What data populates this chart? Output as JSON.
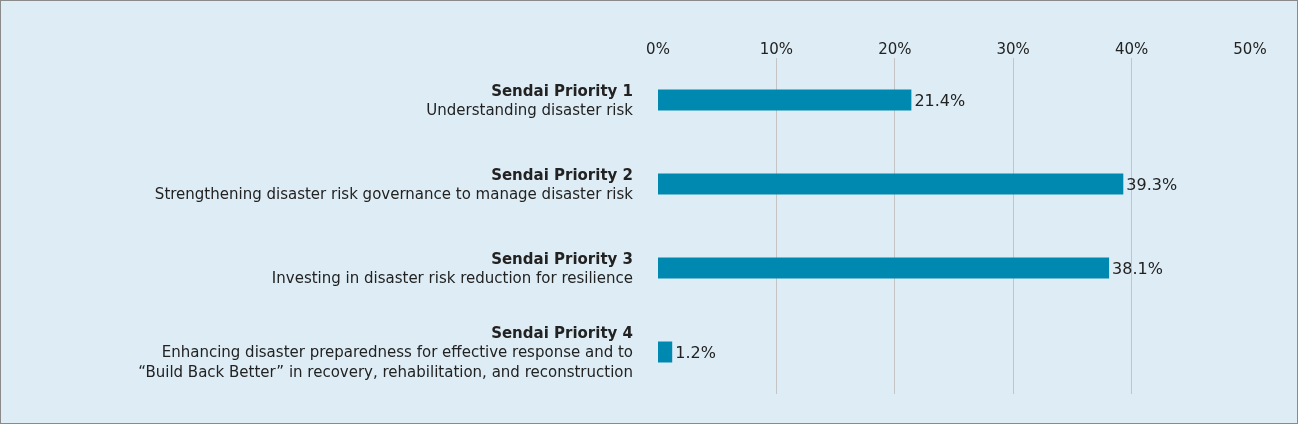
{
  "chart_data": {
    "type": "bar",
    "orientation": "horizontal",
    "categories": [
      "Sendai Priority 1\nUnderstanding disaster risk",
      "Sendai Priority 2\nStrengthening disaster risk governance to manage disaster risk",
      "Sendai Priority 3\nInvesting in disaster risk reduction for resilience",
      "Sendai Priority 4\nEnhancing disaster preparedness for effective response and to\n“Build Back Better” in recovery, rehabilitation, and reconstruction"
    ],
    "values": [
      21.4,
      39.3,
      38.1,
      1.2
    ],
    "color": "#0089b0",
    "value_labels": [
      "21.4%",
      "39.3%",
      "38.1%",
      "1.2%"
    ],
    "xlim": [
      0,
      50
    ],
    "xticks": [
      {
        "value": 0,
        "label": "0%"
      },
      {
        "value": 10,
        "label": "10%"
      },
      {
        "value": 20,
        "label": "20%"
      },
      {
        "value": 30,
        "label": "30%"
      },
      {
        "value": 40,
        "label": "40%"
      },
      {
        "value": 50,
        "label": "50%"
      }
    ],
    "grid": "x",
    "legend": false
  }
}
